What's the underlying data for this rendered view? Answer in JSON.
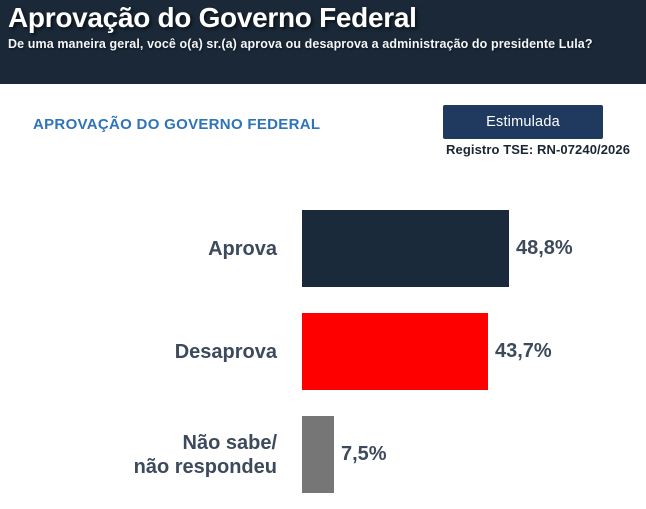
{
  "header": {
    "title": "Aprovação do Governo Federal",
    "subtitle": "De uma maneira geral, você o(a) sr.(a) aprova ou desaprova a administração do presidente Lula?"
  },
  "section": {
    "heading": "APROVAÇÃO DO GOVERNO FEDERAL",
    "badge_label": "Estimulada",
    "registry": "Registro TSE: RN-07240/2026"
  },
  "colors": {
    "header_bg": "#1a2837",
    "badge_bg": "#1f3a5e",
    "heading_blue": "#2e74b8",
    "label_text": "#3d4a5c",
    "approve_bar": "#1b2a3a",
    "disapprove_bar": "#ff0000",
    "dontknow_bar": "#767676"
  },
  "chart_data": {
    "type": "bar",
    "orientation": "horizontal",
    "title": "APROVAÇÃO DO GOVERNO FEDERAL",
    "categories": [
      "Aprova",
      "Desaprova",
      "Não sabe/\nnão respondeu"
    ],
    "values": [
      48.8,
      43.7,
      7.5
    ],
    "value_labels": [
      "48,8%",
      "43,7%",
      "7,5%"
    ],
    "bar_colors": [
      "#1b2a3a",
      "#ff0000",
      "#767676"
    ],
    "bar_names": [
      "aprova",
      "desaprova",
      "nao-sabe"
    ],
    "xlim": [
      0,
      100
    ],
    "grid": false,
    "legend": false
  }
}
